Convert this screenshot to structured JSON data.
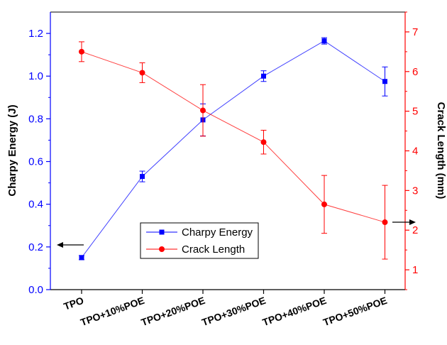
{
  "chart_data": {
    "type": "line",
    "categories": [
      "TPO",
      "TPO+10%POE",
      "TPO+20%POE",
      "TPO+30%POE",
      "TPO+40%POE",
      "TPO+50%POE"
    ],
    "ylabel": "Charpy Energy (J)",
    "y2label": "Crack Length (mm)",
    "ylim": [
      0,
      1.3
    ],
    "y2lim": [
      0.5,
      7.5
    ],
    "yticks": [
      "0.0",
      "0.2",
      "0.4",
      "0.6",
      "0.8",
      "1.0",
      "1.2"
    ],
    "y2ticks": [
      "1",
      "2",
      "3",
      "4",
      "5",
      "6",
      "7"
    ],
    "grid": false,
    "legend_position": "bottom-center",
    "series": [
      {
        "name": "Charpy Energy",
        "axis": "left",
        "color": "#0000ff",
        "marker": "square",
        "values": [
          0.15,
          0.53,
          0.795,
          1.0,
          1.165,
          0.975
        ],
        "errors": [
          0.01,
          0.025,
          0.075,
          0.025,
          0.015,
          0.068
        ]
      },
      {
        "name": "Crack Length",
        "axis": "right",
        "color": "#ff0000",
        "marker": "circle",
        "values": [
          6.5,
          5.97,
          5.02,
          4.22,
          2.65,
          2.2
        ],
        "errors": [
          0.25,
          0.25,
          0.65,
          0.3,
          0.73,
          0.93
        ]
      }
    ],
    "annotations": [
      {
        "type": "arrow",
        "direction": "left",
        "axis": "left",
        "color": "#000000"
      },
      {
        "type": "arrow",
        "direction": "right",
        "axis": "right",
        "color": "#000000"
      }
    ]
  }
}
